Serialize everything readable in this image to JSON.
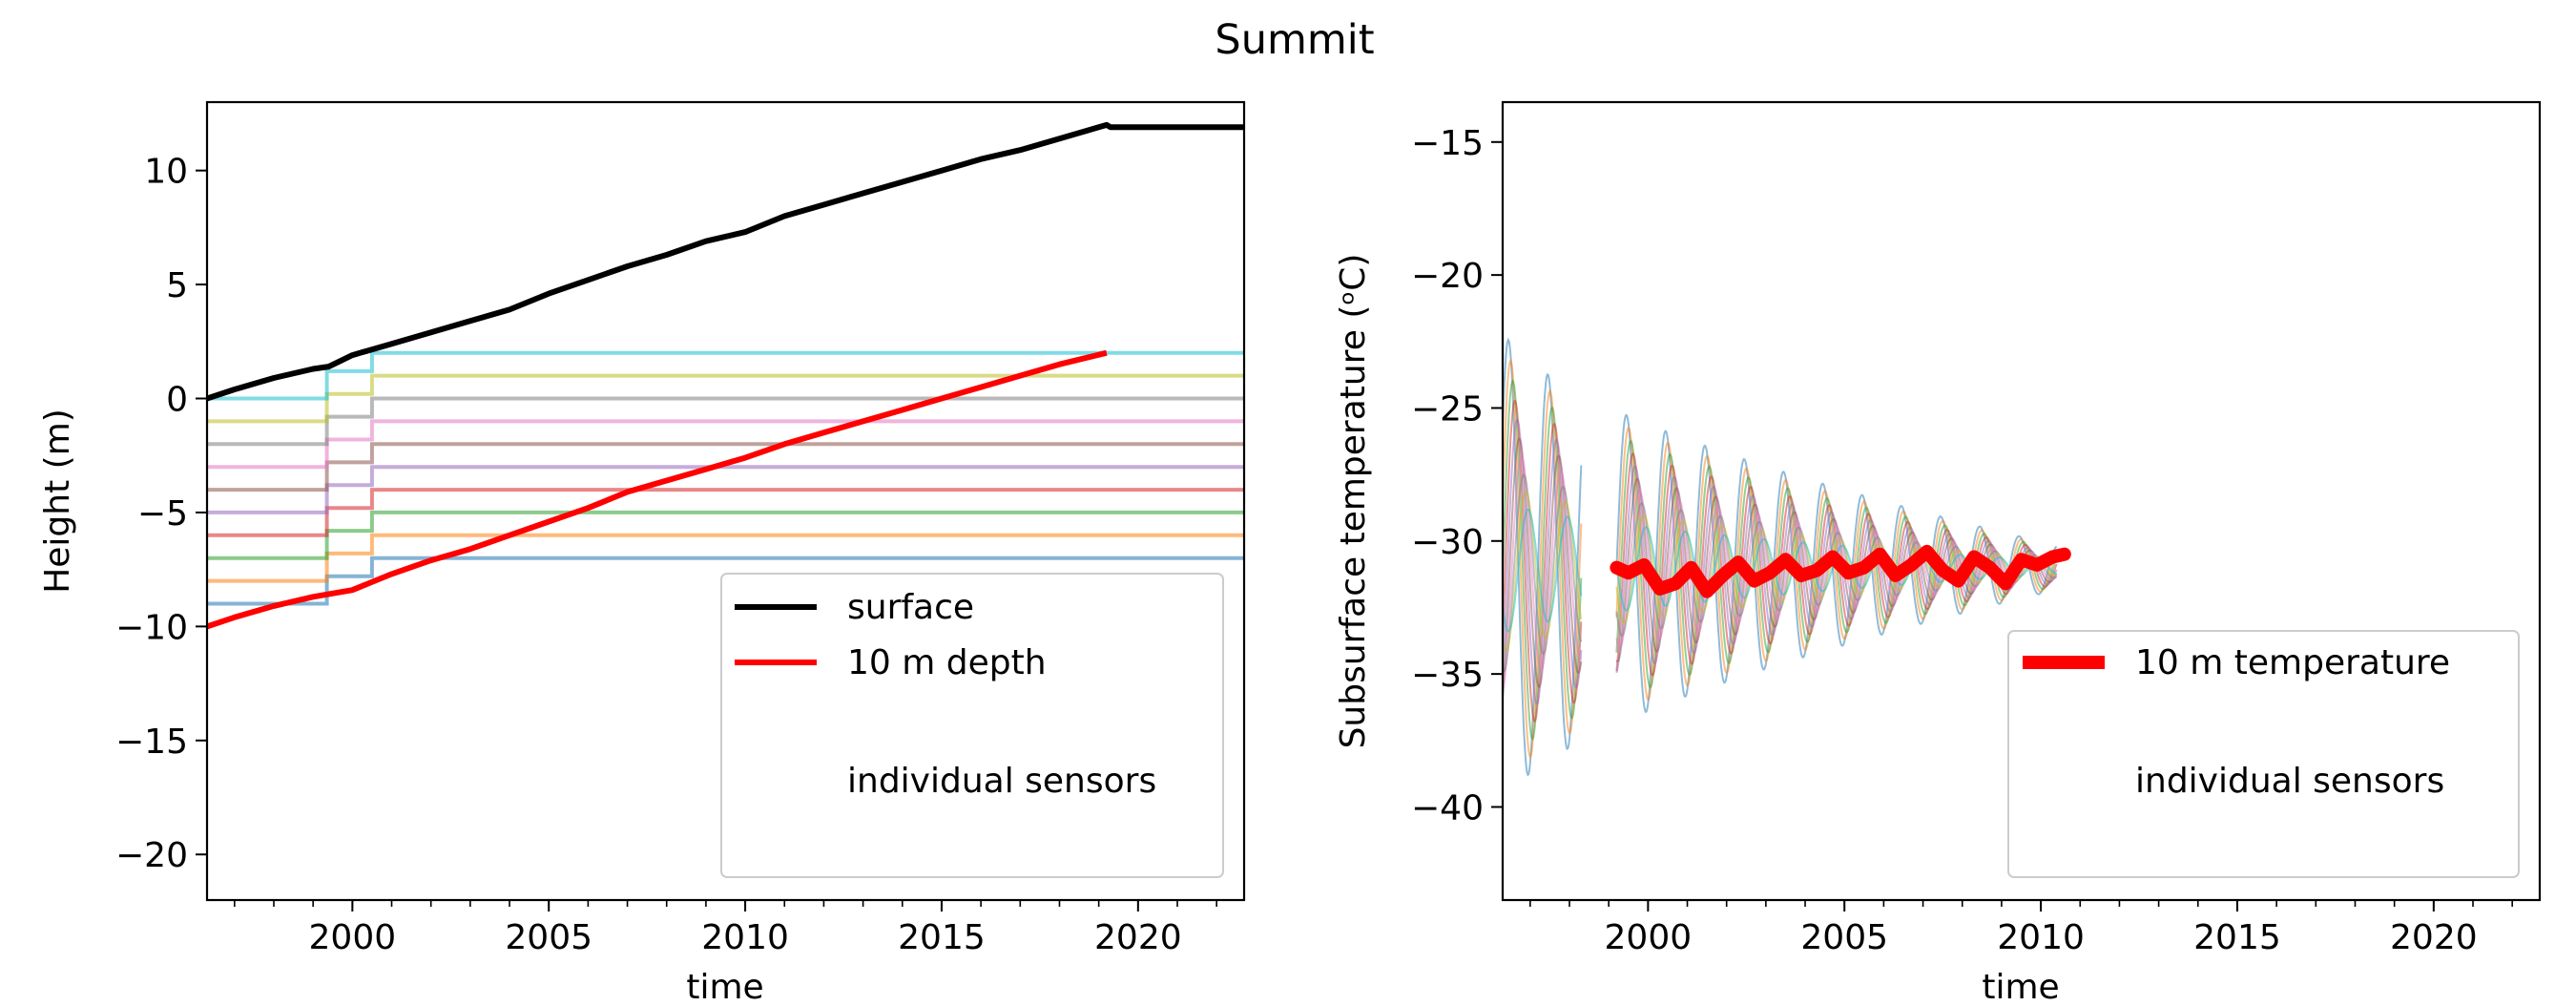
{
  "figure_title": "Summit",
  "chart_data": [
    {
      "type": "line",
      "title": "",
      "xlabel": "time",
      "ylabel": "Height (m)",
      "xlim": [
        1996.3,
        2022.7
      ],
      "ylim": [
        -22,
        13
      ],
      "xticks": [
        2000,
        2005,
        2010,
        2015,
        2020
      ],
      "yticks": [
        -20,
        -15,
        -10,
        -5,
        0,
        5,
        10
      ],
      "legend": {
        "placement": "lower-right",
        "entries": [
          "surface",
          "10 m depth",
          "individual sensors"
        ]
      },
      "series": [
        {
          "name": "surface",
          "color": "#000000",
          "x": [
            1996.3,
            1997,
            1998,
            1999,
            1999.4,
            2000,
            2001,
            2002,
            2003,
            2004,
            2005,
            2006,
            2007,
            2008,
            2009,
            2010,
            2011,
            2012,
            2013,
            2014,
            2015,
            2016,
            2017,
            2018,
            2019.2,
            2019.3,
            2022.7
          ],
          "y": [
            0.0,
            0.4,
            0.9,
            1.3,
            1.4,
            1.9,
            2.4,
            2.9,
            3.4,
            3.9,
            4.6,
            5.2,
            5.8,
            6.3,
            6.9,
            7.3,
            8.0,
            8.5,
            9.0,
            9.5,
            10.0,
            10.5,
            10.9,
            11.4,
            12.0,
            11.9,
            11.9
          ]
        },
        {
          "name": "10 m depth",
          "color": "#ff0000",
          "x": [
            1996.3,
            1997,
            1998,
            1999,
            2000,
            2001,
            2002,
            2003,
            2004,
            2005,
            2006,
            2007,
            2008,
            2009,
            2010,
            2011,
            2012,
            2013,
            2014,
            2015,
            2016,
            2017,
            2018,
            2019.2
          ],
          "y": [
            -10.0,
            -9.6,
            -9.1,
            -8.7,
            -8.4,
            -7.7,
            -7.1,
            -6.6,
            -6.0,
            -5.4,
            -4.8,
            -4.1,
            -3.6,
            -3.1,
            -2.6,
            -2.0,
            -1.5,
            -1.0,
            -0.5,
            0.0,
            0.5,
            1.0,
            1.5,
            2.0
          ]
        }
      ],
      "sensors": {
        "name": "individual sensors",
        "colors": [
          "#1f77b4",
          "#ff7f0e",
          "#2ca02c",
          "#d62728",
          "#9467bd",
          "#8c564b",
          "#e377c2",
          "#7f7f7f",
          "#bcbd22",
          "#17becf"
        ],
        "x": [
          1996.3,
          1999.35,
          2000.5,
          2022.7
        ],
        "y": [
          [
            -9.0,
            -9.0,
            -7.8,
            -7.0
          ],
          [
            -8.0,
            -8.0,
            -6.8,
            -6.0
          ],
          [
            -7.0,
            -7.0,
            -5.8,
            -5.0
          ],
          [
            -6.0,
            -6.0,
            -4.8,
            -4.0
          ],
          [
            -5.0,
            -5.0,
            -3.8,
            -3.0
          ],
          [
            -4.0,
            -4.0,
            -2.8,
            -2.0
          ],
          [
            -3.0,
            -3.0,
            -1.8,
            -1.0
          ],
          [
            -2.0,
            -2.0,
            -0.8,
            0.0
          ],
          [
            -1.0,
            -1.0,
            0.2,
            1.0
          ],
          [
            0.0,
            0.0,
            1.2,
            2.0
          ]
        ]
      }
    },
    {
      "type": "line",
      "title": "",
      "xlabel": "time",
      "ylabel": "Subsurface temperature (ᵒC)",
      "xlim": [
        1996.3,
        2022.7
      ],
      "ylim": [
        -43.5,
        -13.5
      ],
      "xticks": [
        2000,
        2005,
        2010,
        2015,
        2020
      ],
      "yticks": [
        -40,
        -35,
        -30,
        -25,
        -20,
        -15
      ],
      "legend": {
        "placement": "lower-right",
        "entries": [
          "10 m temperature",
          "individual sensors"
        ]
      },
      "series": [
        {
          "name": "10 m temperature",
          "color": "#ff0000",
          "x": [
            1999.2,
            1999.5,
            1999.9,
            2000.3,
            2000.7,
            2001.1,
            2001.5,
            2001.9,
            2002.3,
            2002.7,
            2003.1,
            2003.5,
            2003.9,
            2004.3,
            2004.7,
            2005.1,
            2005.5,
            2005.9,
            2006.3,
            2006.7,
            2007.1,
            2007.5,
            2007.9,
            2008.3,
            2008.7,
            2009.1,
            2009.5,
            2009.9,
            2010.3,
            2010.6
          ],
          "y": [
            -31.0,
            -31.2,
            -30.9,
            -31.8,
            -31.6,
            -31.0,
            -31.9,
            -31.3,
            -30.8,
            -31.5,
            -31.2,
            -30.7,
            -31.3,
            -31.1,
            -30.6,
            -31.2,
            -31.0,
            -30.5,
            -31.3,
            -30.9,
            -30.4,
            -31.1,
            -31.5,
            -30.6,
            -31.0,
            -31.6,
            -30.7,
            -30.9,
            -30.6,
            -30.5
          ]
        }
      ],
      "sensors": {
        "name": "individual sensors",
        "colors": [
          "#1f77b4",
          "#ff7f0e",
          "#2ca02c",
          "#d62728",
          "#9467bd",
          "#8c564b",
          "#e377c2",
          "#7f7f7f",
          "#bcbd22",
          "#17becf"
        ],
        "segments": [
          [
            1996.3,
            1998.3
          ],
          [
            1999.2,
            2010.4
          ]
        ],
        "mean": -31.0,
        "amplitude_start": 13.0,
        "amplitude_end": 1.2
      }
    }
  ]
}
